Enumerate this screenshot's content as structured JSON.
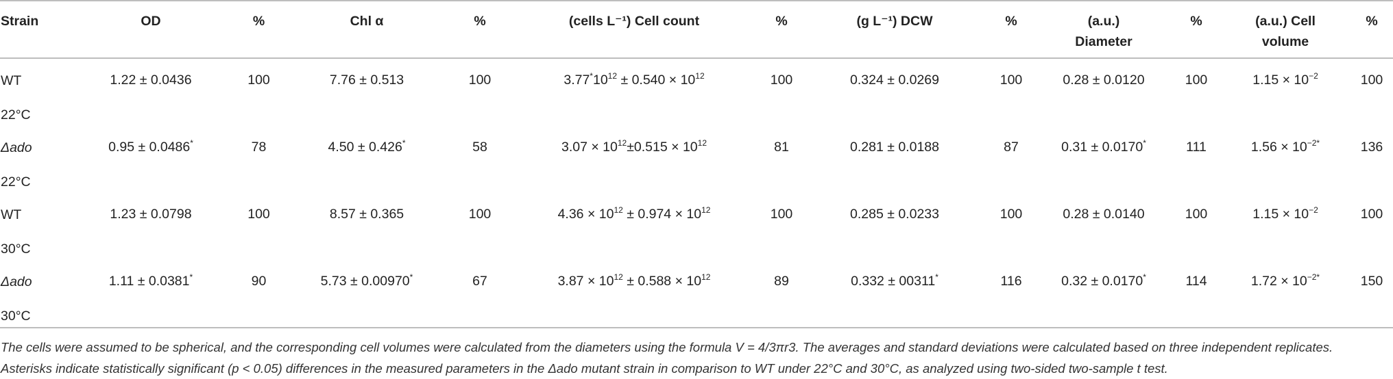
{
  "table": {
    "headers": [
      {
        "key": "strain",
        "label": "Strain"
      },
      {
        "key": "od",
        "label": "OD"
      },
      {
        "key": "od_pct",
        "label": "%"
      },
      {
        "key": "chl",
        "label": "Chl α"
      },
      {
        "key": "chl_pct",
        "label": "%"
      },
      {
        "key": "cells",
        "label": "(cells L⁻¹) Cell count"
      },
      {
        "key": "cells_pct",
        "label": "%"
      },
      {
        "key": "dcw",
        "label": "(g L⁻¹) DCW"
      },
      {
        "key": "dcw_pct",
        "label": "%"
      },
      {
        "key": "diam_line1",
        "label": "(a.u.)"
      },
      {
        "key": "diam_line2",
        "label": "Diameter"
      },
      {
        "key": "diam_pct",
        "label": "%"
      },
      {
        "key": "vol_line1",
        "label": "(a.u.) Cell"
      },
      {
        "key": "vol_line2",
        "label": "volume"
      },
      {
        "key": "vol_pct",
        "label": "%"
      }
    ],
    "rows": [
      {
        "strain": "WT",
        "strain_italic": false,
        "temp": "22°C",
        "od": "1.22 ± 0.0436",
        "od_ast": "",
        "od_pct": "100",
        "chl": "7.76 ± 0.513",
        "chl_ast": "",
        "chl_pct": "100",
        "cells_a": "3.77",
        "cells_a_sup": "*",
        "cells_mid": "10",
        "cells_mid_sup": "12",
        "cells_b": " ± 0.540 × 10",
        "cells_b_sup": "12",
        "cells_pct": "100",
        "dcw": "0.324 ± 0.0269",
        "dcw_ast": "",
        "dcw_pct": "100",
        "diam": "0.28 ± 0.0120",
        "diam_ast": "",
        "diam_pct": "100",
        "vol": "1.15 × 10",
        "vol_sup": "−2",
        "vol_pct": "100"
      },
      {
        "strain": "Δado",
        "strain_italic": true,
        "temp": "22°C",
        "od": "0.95 ± 0.0486",
        "od_ast": "*",
        "od_pct": "78",
        "chl": "4.50 ± 0.426",
        "chl_ast": "*",
        "chl_pct": "58",
        "cells_a": "3.07 × 10",
        "cells_a_sup": "12",
        "cells_mid": "±0.515 × 10",
        "cells_mid_sup": "12",
        "cells_b": "",
        "cells_b_sup": "",
        "cells_pct": "81",
        "dcw": "0.281 ± 0.0188",
        "dcw_ast": "",
        "dcw_pct": "87",
        "diam": "0.31 ± 0.0170",
        "diam_ast": "*",
        "diam_pct": "111",
        "vol": "1.56 × 10",
        "vol_sup": "−2*",
        "vol_pct": "136"
      },
      {
        "strain": "WT",
        "strain_italic": false,
        "temp": "30°C",
        "od": "1.23 ± 0.0798",
        "od_ast": "",
        "od_pct": "100",
        "chl": "8.57 ± 0.365",
        "chl_ast": "",
        "chl_pct": "100",
        "cells_a": "4.36 × 10",
        "cells_a_sup": "12",
        "cells_mid": " ± 0.974 × 10",
        "cells_mid_sup": "12",
        "cells_b": "",
        "cells_b_sup": "",
        "cells_pct": "100",
        "dcw": "0.285 ± 0.0233",
        "dcw_ast": "",
        "dcw_pct": "100",
        "diam": "0.28 ± 0.0140",
        "diam_ast": "",
        "diam_pct": "100",
        "vol": "1.15 × 10",
        "vol_sup": "−2",
        "vol_pct": "100"
      },
      {
        "strain": "Δado",
        "strain_italic": true,
        "temp": "30°C",
        "od": "1.11 ± 0.0381",
        "od_ast": "*",
        "od_pct": "90",
        "chl": "5.73 ± 0.00970",
        "chl_ast": "*",
        "chl_pct": "67",
        "cells_a": "3.87 × 10",
        "cells_a_sup": "12",
        "cells_mid": " ± 0.588 × 10",
        "cells_mid_sup": "12",
        "cells_b": "",
        "cells_b_sup": "",
        "cells_pct": "89",
        "dcw": "0.332 ± 00311",
        "dcw_ast": "*",
        "dcw_pct": "116",
        "diam": "0.32 ± 0.0170",
        "diam_ast": "*",
        "diam_pct": "114",
        "vol": "1.72 × 10",
        "vol_sup": "−2*",
        "vol_pct": "150"
      }
    ]
  },
  "footnote": "The cells were assumed to be spherical, and the corresponding cell volumes were calculated from the diameters using the formula V = 4/3πr3. The averages and standard deviations were calculated based on three independent replicates. Asterisks indicate statistically significant (p < 0.05) differences in the measured parameters in the Δado mutant strain in comparison to WT under 22°C and 30°C, as analyzed using two-sided two-sample t test."
}
